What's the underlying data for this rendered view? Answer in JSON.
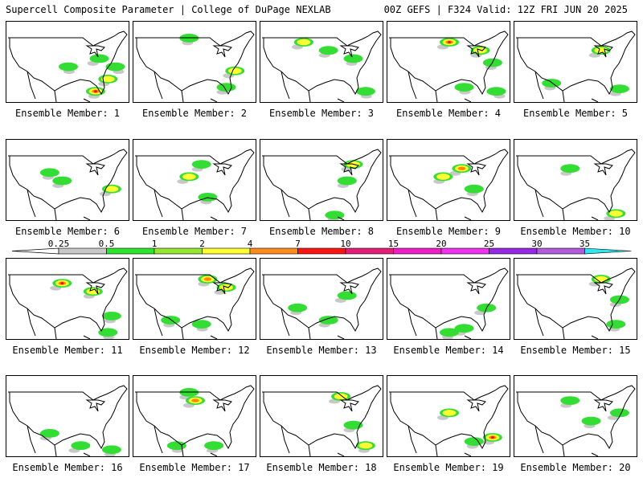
{
  "header": {
    "left": "Supercell Composite Parameter | College of DuPage NEXLAB",
    "right": "00Z GEFS | F324 Valid: 12Z FRI JUN 20 2025"
  },
  "members": [
    {
      "label": "Ensemble Member: 1",
      "blobs": [
        [
          0.75,
          0.45,
          "g"
        ],
        [
          0.82,
          0.7,
          "gy"
        ],
        [
          0.72,
          0.85,
          "gyor"
        ],
        [
          0.5,
          0.55,
          "g"
        ],
        [
          0.88,
          0.55,
          "g"
        ]
      ]
    },
    {
      "label": "Ensemble Member: 2",
      "blobs": [
        [
          0.82,
          0.6,
          "gy"
        ],
        [
          0.75,
          0.8,
          "g"
        ],
        [
          0.45,
          0.2,
          "g"
        ]
      ]
    },
    {
      "label": "Ensemble Member: 3",
      "blobs": [
        [
          0.35,
          0.25,
          "gy"
        ],
        [
          0.55,
          0.35,
          "g"
        ],
        [
          0.75,
          0.45,
          "g"
        ],
        [
          0.85,
          0.85,
          "g"
        ]
      ]
    },
    {
      "label": "Ensemble Member: 4",
      "blobs": [
        [
          0.5,
          0.25,
          "gyor"
        ],
        [
          0.75,
          0.35,
          "gy"
        ],
        [
          0.85,
          0.5,
          "g"
        ],
        [
          0.62,
          0.8,
          "g"
        ],
        [
          0.88,
          0.85,
          "g"
        ]
      ]
    },
    {
      "label": "Ensemble Member: 5",
      "blobs": [
        [
          0.7,
          0.35,
          "gy"
        ],
        [
          0.85,
          0.82,
          "g"
        ],
        [
          0.3,
          0.75,
          "g"
        ]
      ]
    },
    {
      "label": "Ensemble Member: 6",
      "blobs": [
        [
          0.85,
          0.6,
          "gy"
        ],
        [
          0.45,
          0.5,
          "g"
        ],
        [
          0.35,
          0.4,
          "g"
        ]
      ]
    },
    {
      "label": "Ensemble Member: 7",
      "blobs": [
        [
          0.45,
          0.45,
          "gy"
        ],
        [
          0.55,
          0.3,
          "g"
        ],
        [
          0.6,
          0.7,
          "g"
        ]
      ]
    },
    {
      "label": "Ensemble Member: 8",
      "blobs": [
        [
          0.75,
          0.3,
          "gy"
        ],
        [
          0.7,
          0.5,
          "g"
        ],
        [
          0.6,
          0.92,
          "g"
        ]
      ]
    },
    {
      "label": "Ensemble Member: 9",
      "blobs": [
        [
          0.6,
          0.35,
          "gyo"
        ],
        [
          0.45,
          0.45,
          "gy"
        ],
        [
          0.7,
          0.6,
          "g"
        ]
      ]
    },
    {
      "label": "Ensemble Member: 10",
      "blobs": [
        [
          0.82,
          0.9,
          "gy"
        ],
        [
          0.45,
          0.35,
          "g"
        ]
      ]
    },
    {
      "label": "Ensemble Member: 11",
      "blobs": [
        [
          0.45,
          0.3,
          "gyor"
        ],
        [
          0.7,
          0.4,
          "gy"
        ],
        [
          0.85,
          0.7,
          "g"
        ],
        [
          0.82,
          0.9,
          "g"
        ]
      ]
    },
    {
      "label": "Ensemble Member: 12",
      "blobs": [
        [
          0.75,
          0.35,
          "gy"
        ],
        [
          0.6,
          0.25,
          "gyo"
        ],
        [
          0.3,
          0.75,
          "g"
        ],
        [
          0.55,
          0.8,
          "g"
        ]
      ]
    },
    {
      "label": "Ensemble Member: 13",
      "blobs": [
        [
          0.7,
          0.45,
          "g"
        ],
        [
          0.55,
          0.75,
          "g"
        ],
        [
          0.3,
          0.6,
          "g"
        ]
      ]
    },
    {
      "label": "Ensemble Member: 14",
      "blobs": [
        [
          0.8,
          0.6,
          "g"
        ],
        [
          0.62,
          0.85,
          "g"
        ],
        [
          0.5,
          0.9,
          "g"
        ]
      ]
    },
    {
      "label": "Ensemble Member: 15",
      "blobs": [
        [
          0.7,
          0.25,
          "gy"
        ],
        [
          0.85,
          0.5,
          "g"
        ],
        [
          0.82,
          0.8,
          "g"
        ]
      ]
    },
    {
      "label": "Ensemble Member: 16",
      "blobs": [
        [
          0.6,
          0.85,
          "g"
        ],
        [
          0.35,
          0.7,
          "g"
        ],
        [
          0.85,
          0.9,
          "g"
        ]
      ]
    },
    {
      "label": "Ensemble Member: 17",
      "blobs": [
        [
          0.5,
          0.3,
          "gyo"
        ],
        [
          0.45,
          0.2,
          "g"
        ],
        [
          0.65,
          0.85,
          "g"
        ],
        [
          0.35,
          0.85,
          "g"
        ]
      ]
    },
    {
      "label": "Ensemble Member: 18",
      "blobs": [
        [
          0.65,
          0.25,
          "gy"
        ],
        [
          0.75,
          0.6,
          "g"
        ],
        [
          0.85,
          0.85,
          "gy"
        ]
      ]
    },
    {
      "label": "Ensemble Member: 19",
      "blobs": [
        [
          0.5,
          0.45,
          "gy"
        ],
        [
          0.85,
          0.75,
          "gyor"
        ],
        [
          0.7,
          0.8,
          "g"
        ]
      ]
    },
    {
      "label": "Ensemble Member: 20",
      "blobs": [
        [
          0.85,
          0.45,
          "g"
        ],
        [
          0.45,
          0.3,
          "g"
        ],
        [
          0.62,
          0.55,
          "g"
        ]
      ]
    }
  ],
  "colorbar": {
    "labels": [
      "0.25",
      "0.5",
      "1",
      "2",
      "4",
      "7",
      "10",
      "15",
      "20",
      "25",
      "30",
      "35"
    ],
    "colors": [
      "#c8c8c8",
      "#2ee52e",
      "#96e632",
      "#ffff32",
      "#ff8c1e",
      "#ff1414",
      "#e61e78",
      "#f01ec8",
      "#f032f0",
      "#9628e6",
      "#b45adc",
      "#32e6f0"
    ],
    "level_colors": {
      "g": "#33dd33",
      "y": "#ffff33",
      "o": "#ff8800",
      "r": "#ee1111",
      "gray": "#c8c8c8"
    }
  }
}
